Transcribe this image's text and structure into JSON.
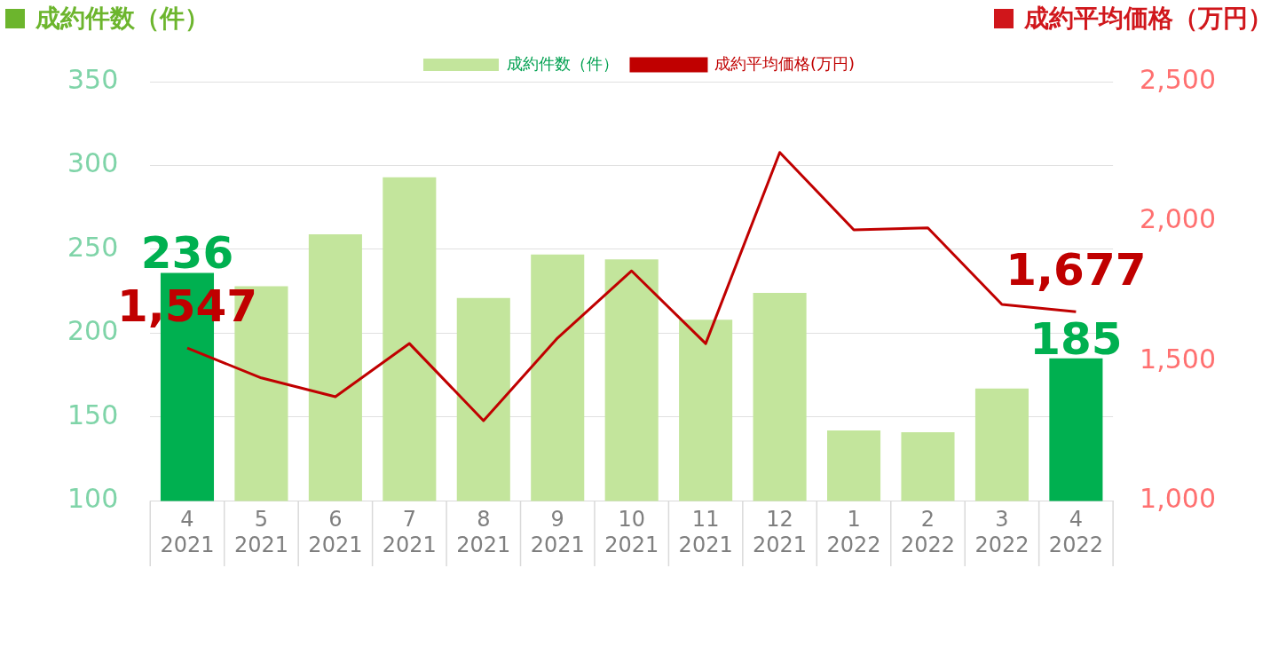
{
  "chart_data": {
    "type": "bar",
    "ylabel": "成約件数（件）",
    "y2label": "成約平均価格（万円）",
    "categories": [
      "4\n2021",
      "5\n2021",
      "6\n2021",
      "7\n2021",
      "8\n2021",
      "9\n2021",
      "10\n2021",
      "11\n2021",
      "12\n2021",
      "1\n2022",
      "2\n2022",
      "3\n2022",
      "4\n2022"
    ],
    "series": [
      {
        "name": "成約件数（件）",
        "color": "#c3e59c",
        "colors": [
          "#00b050",
          "#c3e59c",
          "#c3e59c",
          "#c3e59c",
          "#c3e59c",
          "#c3e59c",
          "#c3e59c",
          "#c3e59c",
          "#c3e59c",
          "#c3e59c",
          "#c3e59c",
          "#c3e59c",
          "#00b050"
        ],
        "values": [
          236,
          228,
          259,
          293,
          221,
          247,
          244,
          208,
          224,
          142,
          141,
          167,
          185
        ],
        "value_labels": [
          "236",
          null,
          null,
          null,
          null,
          null,
          null,
          null,
          null,
          null,
          null,
          null,
          "185"
        ]
      },
      {
        "name": "成約平均価格(万円)",
        "type": "line",
        "axis": "y2",
        "color": "#c00000",
        "values": [
          1547,
          1440,
          1373,
          1563,
          1287,
          1583,
          1823,
          1563,
          2247,
          1970,
          1977,
          1703,
          1677
        ],
        "value_labels": [
          "1,547",
          null,
          null,
          null,
          null,
          null,
          null,
          null,
          null,
          null,
          null,
          null,
          "1,677"
        ]
      }
    ],
    "ylim": [
      100,
      350
    ],
    "yticks": [
      100,
      150,
      200,
      250,
      300,
      350
    ],
    "y2lim": [
      1000,
      2500
    ],
    "y2ticks": [
      {
        "value": 1000,
        "label": "1,000"
      },
      {
        "value": 1500,
        "label": "1,500"
      },
      {
        "value": 2000,
        "label": "2,000"
      },
      {
        "value": 2500,
        "label": "2,500"
      }
    ],
    "grid": "y",
    "legend": "top",
    "marker": "none",
    "line_style": "solid"
  }
}
